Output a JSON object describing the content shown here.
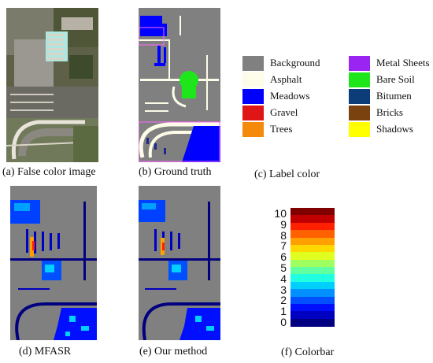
{
  "captions": {
    "a": "(a) False color image",
    "b": "(b) Ground truth",
    "c": "(c) Label color",
    "d": "(d) MFASR",
    "e": "(e) Our method",
    "f": "(f) Colorbar"
  },
  "legend": [
    {
      "label": "Background",
      "color": "#808080"
    },
    {
      "label": "Asphalt",
      "color": "#fdfce8"
    },
    {
      "label": "Meadows",
      "color": "#0000ff"
    },
    {
      "label": "Gravel",
      "color": "#e01515"
    },
    {
      "label": "Trees",
      "color": "#f58a0a"
    },
    {
      "label": "Metal Sheets",
      "color": "#9a24f2"
    },
    {
      "label": "Bare Soil",
      "color": "#1ee61a"
    },
    {
      "label": "Bitumen",
      "color": "#0d3d78"
    },
    {
      "label": "Bricks",
      "color": "#7a420f"
    },
    {
      "label": "Shadows",
      "color": "#ffff00"
    }
  ],
  "colorbar": {
    "ticks": [
      "10",
      "9",
      "8",
      "7",
      "6",
      "5",
      "4",
      "3",
      "2",
      "1",
      "0"
    ],
    "colors": [
      "#800000",
      "#c00000",
      "#ff2000",
      "#ff6000",
      "#ffa000",
      "#ffd800",
      "#e0ff20",
      "#a0ff60",
      "#60ffa0",
      "#20ffe0",
      "#00d0ff",
      "#0090ff",
      "#0050ff",
      "#0010ff",
      "#0000c0",
      "#000080"
    ]
  }
}
